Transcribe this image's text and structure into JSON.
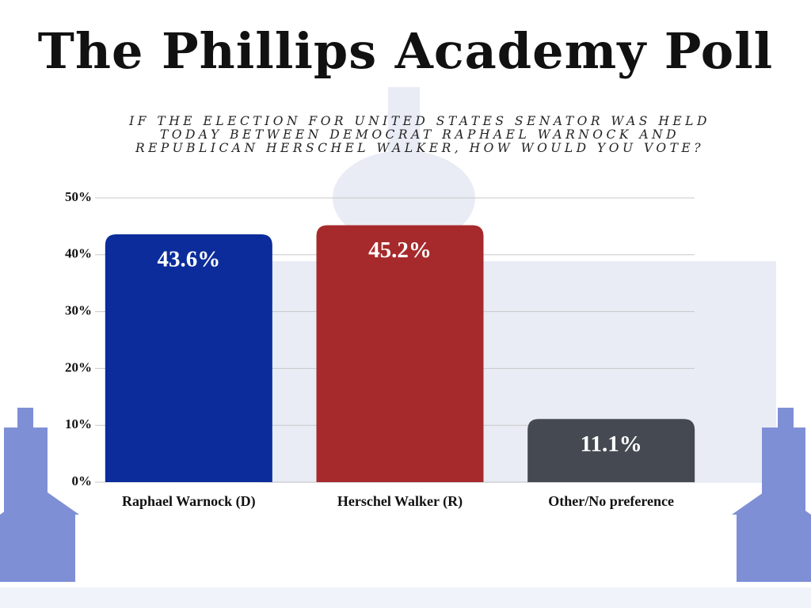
{
  "chart_data": {
    "type": "bar",
    "title": "The Phillips Academy Poll",
    "subtitle": "IF THE ELECTION FOR UNITED STATES SENATOR WAS HELD TODAY BETWEEN DEMOCRAT RAPHAEL WARNOCK AND REPUBLICAN HERSCHEL WALKER, HOW WOULD YOU VOTE?",
    "categories": [
      "Raphael Warnock (D)",
      "Herschel Walker (R)",
      "Other/No preference"
    ],
    "values": [
      43.6,
      45.2,
      11.1
    ],
    "value_labels": [
      "43.6%",
      "45.2%",
      "11.1%"
    ],
    "colors": [
      "#0b2c9a",
      "#a62a2b",
      "#454a52"
    ],
    "ylim": [
      0,
      50
    ],
    "yticks": [
      {
        "value": 0,
        "label": "0%"
      },
      {
        "value": 10,
        "label": "10%"
      },
      {
        "value": 20,
        "label": "20%"
      },
      {
        "value": 30,
        "label": "30%"
      },
      {
        "value": 40,
        "label": "40%"
      },
      {
        "value": 50,
        "label": "50%"
      }
    ],
    "grid": true
  }
}
